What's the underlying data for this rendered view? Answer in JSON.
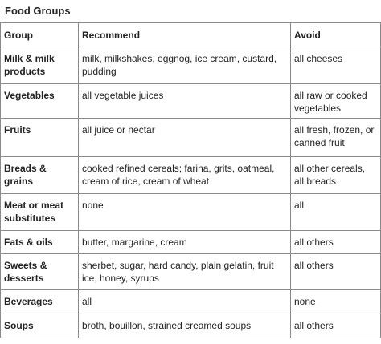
{
  "caption": "Food Groups",
  "headers": {
    "group": "Group",
    "recommend": "Recommend",
    "avoid": "Avoid"
  },
  "rows": [
    {
      "group": "Milk & milk products",
      "recommend": "milk, milkshakes, eggnog, ice cream, custard, pudding",
      "avoid": "all cheeses"
    },
    {
      "group": "Vegetables",
      "recommend": "all vegetable juices",
      "avoid": "all raw or cooked vegetables"
    },
    {
      "group": "Fruits",
      "recommend": "all juice or nectar",
      "avoid": "all fresh, frozen, or canned fruit"
    },
    {
      "group": "Breads & grains",
      "recommend": "cooked refined cereals; farina, grits, oatmeal, cream of rice, cream of wheat",
      "avoid": "all other cereals, all breads"
    },
    {
      "group": "Meat or meat substitutes",
      "recommend": "none",
      "avoid": "all"
    },
    {
      "group": "Fats & oils",
      "recommend": "butter, margarine, cream",
      "avoid": "all others"
    },
    {
      "group": "Sweets & desserts",
      "recommend": "sherbet, sugar, hard candy, plain gelatin, fruit ice, honey, syrups",
      "avoid": "all others"
    },
    {
      "group": "Beverages",
      "recommend": "all",
      "avoid": "none"
    },
    {
      "group": "Soups",
      "recommend": "broth, bouillon, strained creamed soups",
      "avoid": "all others"
    }
  ]
}
